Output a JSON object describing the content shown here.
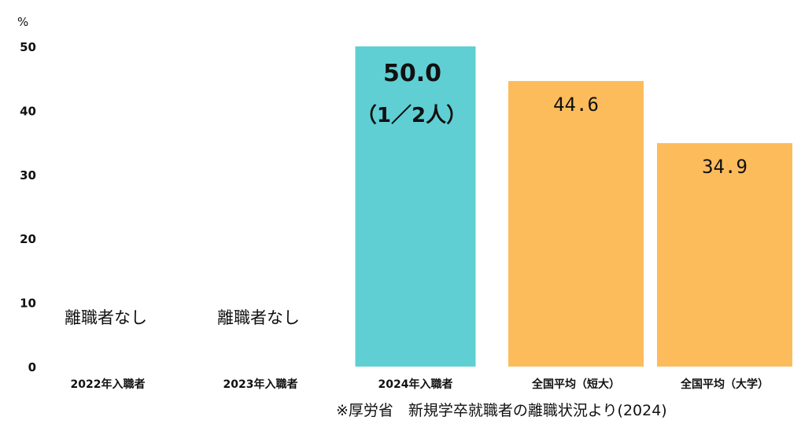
{
  "chart_data": {
    "type": "bar",
    "yunit": "%",
    "ylim": [
      0,
      50
    ],
    "yticks": [
      "0",
      "10",
      "20",
      "30",
      "40",
      "50"
    ],
    "categories": [
      "2022年入職者",
      "2023年入職者",
      "2024年入職者",
      "全国平均（短大）",
      "全国平均（大学）"
    ],
    "values": [
      null,
      null,
      50.0,
      44.6,
      34.9
    ],
    "bar_labels": [
      "離職者なし",
      "離職者なし",
      "50.0",
      "44.6",
      "34.9"
    ],
    "bar_sublabels": [
      "",
      "",
      "（1／2人）",
      "",
      ""
    ],
    "colors": [
      "",
      "",
      "#5fcfd4",
      "#fdbc5c",
      "#fdbc5c"
    ],
    "source": "※厚労省　新規学卒就職者の離職状況より(2024)"
  }
}
